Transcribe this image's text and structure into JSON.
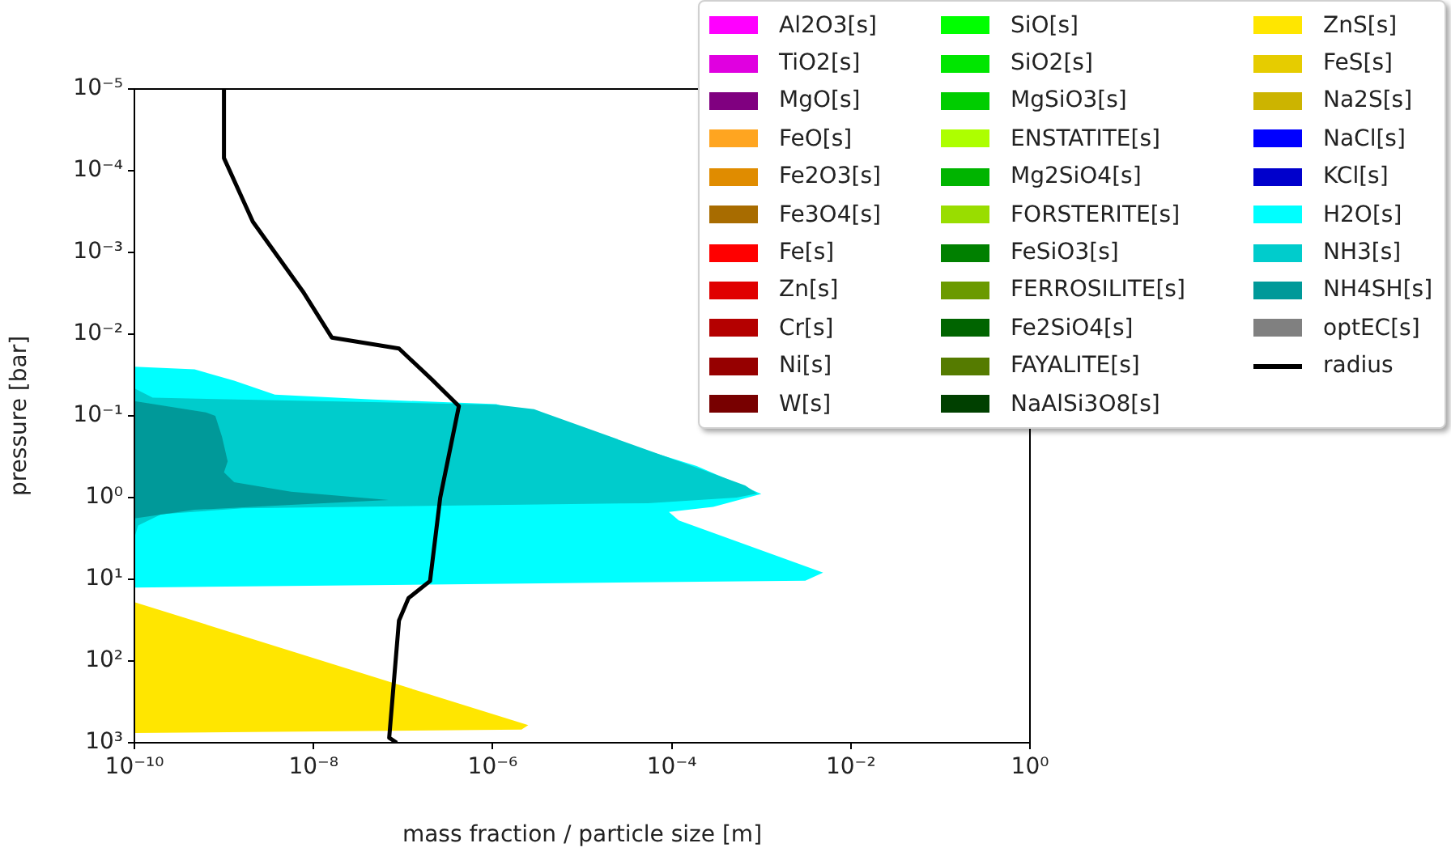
{
  "chart_data": {
    "type": "area",
    "orientation": "horizontal",
    "xlabel": "mass fraction / particle size [m]",
    "ylabel": "pressure [bar]",
    "log": "xy",
    "legend": "top right",
    "xlim": [
      1e-10,
      1
    ],
    "ylim": [
      1000,
      1e-05
    ],
    "xticks": [
      {
        "value": 1e-10,
        "label": "10⁻¹⁰"
      },
      {
        "value": 1e-08,
        "label": "10⁻⁸"
      },
      {
        "value": 1e-06,
        "label": "10⁻⁶"
      },
      {
        "value": 0.0001,
        "label": "10⁻⁴"
      },
      {
        "value": 0.01,
        "label": "10⁻²"
      },
      {
        "value": 1,
        "label": "10⁰"
      }
    ],
    "yticks": [
      {
        "value": 1e-05,
        "label": "10⁻⁵"
      },
      {
        "value": 0.0001,
        "label": "10⁻⁴"
      },
      {
        "value": 0.001,
        "label": "10⁻³"
      },
      {
        "value": 0.01,
        "label": "10⁻²"
      },
      {
        "value": 0.1,
        "label": "10⁻¹"
      },
      {
        "value": 1,
        "label": "10⁰"
      },
      {
        "value": 10,
        "label": "10¹"
      },
      {
        "value": 100,
        "label": "10²"
      },
      {
        "value": 1000,
        "label": "10³"
      }
    ],
    "series": [
      {
        "name": "Al2O3[s]",
        "color": "#ff00ff"
      },
      {
        "name": "TiO2[s]",
        "color": "#e000e0"
      },
      {
        "name": "MgO[s]",
        "color": "#800080"
      },
      {
        "name": "FeO[s]",
        "color": "#ffa520"
      },
      {
        "name": "Fe2O3[s]",
        "color": "#e08c00"
      },
      {
        "name": "Fe3O4[s]",
        "color": "#a86c00"
      },
      {
        "name": "Fe[s]",
        "color": "#ff0000"
      },
      {
        "name": "Zn[s]",
        "color": "#e00000"
      },
      {
        "name": "Cr[s]",
        "color": "#b40000"
      },
      {
        "name": "Ni[s]",
        "color": "#960000"
      },
      {
        "name": "W[s]",
        "color": "#780000"
      },
      {
        "name": "SiO[s]",
        "color": "#00ff00"
      },
      {
        "name": "SiO2[s]",
        "color": "#00e600"
      },
      {
        "name": "MgSiO3[s]",
        "color": "#00cd00"
      },
      {
        "name": "ENSTATITE[s]",
        "color": "#adff00"
      },
      {
        "name": "Mg2SiO4[s]",
        "color": "#00b400"
      },
      {
        "name": "FORSTERITE[s]",
        "color": "#99dd00"
      },
      {
        "name": "FeSiO3[s]",
        "color": "#008000"
      },
      {
        "name": "FERROSILITE[s]",
        "color": "#6b9a00"
      },
      {
        "name": "Fe2SiO4[s]",
        "color": "#006400"
      },
      {
        "name": "FAYALITE[s]",
        "color": "#557b00"
      },
      {
        "name": "NaAlSi3O8[s]",
        "color": "#004000"
      },
      {
        "name": "ZnS[s]",
        "color": "#ffe600",
        "x": [
          19,
          610,
          690,
          760
        ],
        "values": [
          1e-10,
          2.5e-06,
          2.1e-06,
          1e-10
        ]
      },
      {
        "name": "FeS[s]",
        "color": "#e6cc00"
      },
      {
        "name": "Na2S[s]",
        "color": "#ccb400"
      },
      {
        "name": "NaCl[s]",
        "color": "#0000ff"
      },
      {
        "name": "KCl[s]",
        "color": "#0000cc"
      },
      {
        "name": "H2O[s]",
        "color": "#00ffff",
        "x": [
          0.025,
          0.027,
          0.037,
          0.055,
          0.063,
          0.072,
          0.41,
          0.9,
          1.3,
          1.5,
          1.9,
          8.3,
          10.4,
          12.6
        ],
        "values": [
          1e-10,
          4.7e-10,
          1.3e-09,
          3.7e-09,
          4.6e-08,
          1.1e-06,
          0.00019,
          0.001,
          0.00029,
          9.3e-05,
          0.00012,
          0.0049,
          0.0031,
          1e-10
        ]
      },
      {
        "name": "NH3[s]",
        "color": "#00cccc",
        "x": [
          0.046,
          0.06,
          0.073,
          0.083,
          0.43,
          0.71,
          0.89,
          1.0,
          1.17,
          1.35,
          1.6,
          2.2,
          3.1
        ],
        "values": [
          1e-10,
          1.6e-10,
          1.1e-06,
          2.9e-06,
          0.00019,
          0.00066,
          0.0009,
          0.00053,
          5.4e-05,
          1.6e-09,
          2e-10,
          1.1e-10,
          1e-10
        ]
      },
      {
        "name": "NH4SH[s]",
        "color": "#009999",
        "x": [
          0.066,
          0.091,
          0.1,
          0.18,
          0.36,
          0.49,
          0.65,
          0.85,
          1.07,
          1.23,
          1.41,
          1.8
        ],
        "values": [
          1e-10,
          6.3e-10,
          8e-10,
          9.5e-10,
          1.1e-09,
          1e-09,
          1.3e-09,
          5.6e-09,
          6.9e-08,
          5.6e-09,
          4.7e-10,
          1e-10
        ]
      },
      {
        "name": "optEC[s]",
        "color": "#808080"
      },
      {
        "name": "radius",
        "type": "line",
        "color": "#000000",
        "x": [
          1e-05,
          7e-05,
          0.00042,
          0.003,
          0.011,
          0.015,
          0.036,
          0.076,
          1,
          10.5,
          17,
          32,
          870,
          1000
        ],
        "values": [
          1e-09,
          1e-09,
          2.1e-09,
          7.6e-09,
          1.6e-08,
          9e-08,
          2.1e-07,
          4.2e-07,
          2.6e-07,
          2e-07,
          1.15e-07,
          9e-08,
          7e-08,
          8.5e-08
        ]
      }
    ]
  }
}
